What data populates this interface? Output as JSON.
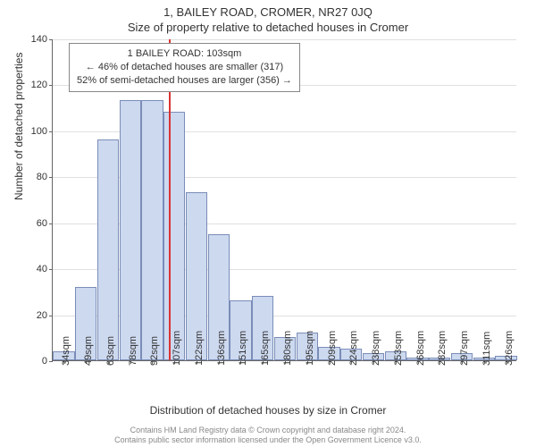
{
  "header": {
    "title": "1, BAILEY ROAD, CROMER, NR27 0JQ",
    "subtitle": "Size of property relative to detached houses in Cromer"
  },
  "chart": {
    "type": "histogram",
    "background_color": "#ffffff",
    "grid_color": "#e0e0e0",
    "axis_color": "#666666",
    "bar_fill": "#cdd9ef",
    "bar_border": "#7a8db8",
    "ref_line_color": "#d93434",
    "ylabel": "Number of detached properties",
    "xlabel": "Distribution of detached houses by size in Cromer",
    "ylim": [
      0,
      140
    ],
    "ytick_step": 20,
    "x_categories": [
      "34sqm",
      "49sqm",
      "63sqm",
      "78sqm",
      "92sqm",
      "107sqm",
      "122sqm",
      "136sqm",
      "151sqm",
      "165sqm",
      "180sqm",
      "195sqm",
      "209sqm",
      "224sqm",
      "238sqm",
      "253sqm",
      "268sqm",
      "282sqm",
      "297sqm",
      "311sqm",
      "326sqm"
    ],
    "values": [
      4,
      32,
      96,
      113,
      113,
      108,
      73,
      55,
      26,
      28,
      10,
      12,
      6,
      5,
      3,
      4,
      1,
      1,
      3,
      1,
      2
    ],
    "bar_width_ratio": 0.98,
    "ref_line_index": 4.8,
    "label_fontsize": 12,
    "tick_fontsize": 11,
    "title_fontsize": 13
  },
  "annotation": {
    "line1": "1 BAILEY ROAD: 103sqm",
    "line2": "← 46% of detached houses are smaller (317)",
    "line3": "52% of semi-detached houses are larger (356) →"
  },
  "footer": {
    "line1": "Contains HM Land Registry data © Crown copyright and database right 2024.",
    "line2": "Contains public sector information licensed under the Open Government Licence v3.0."
  }
}
